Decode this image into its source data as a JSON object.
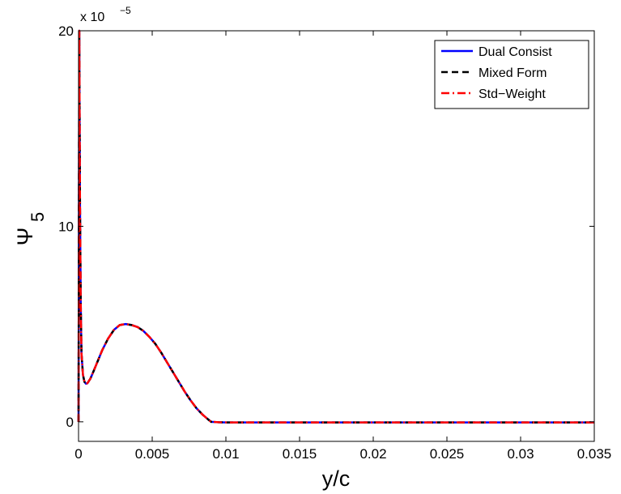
{
  "chart_data": {
    "type": "line",
    "xlabel": "y/c",
    "ylabel": "Ψ",
    "ylabel_subscript": "5",
    "y_scale_base": "x 10",
    "y_scale_exponent": "−5",
    "xlim": [
      0,
      0.035
    ],
    "ylim": [
      -1,
      20
    ],
    "xticks": [
      0,
      0.005,
      0.01,
      0.015,
      0.02,
      0.025,
      0.03,
      0.035
    ],
    "xtick_labels": [
      "0",
      "0.005",
      "0.01",
      "0.015",
      "0.02",
      "0.025",
      "0.03",
      "0.035"
    ],
    "yticks": [
      0,
      10,
      20
    ],
    "ytick_labels": [
      "0",
      "10",
      "20"
    ],
    "grid": false,
    "legend_position": "top-right",
    "x": [
      0,
      5e-05,
      0.0001,
      0.00015,
      0.0002,
      0.0003,
      0.0004,
      0.0005,
      0.0006,
      0.0008,
      0.001,
      0.0013,
      0.0016,
      0.002,
      0.0024,
      0.0028,
      0.0032,
      0.0036,
      0.004,
      0.0044,
      0.0048,
      0.0052,
      0.0056,
      0.006,
      0.0064,
      0.0068,
      0.0072,
      0.0076,
      0.008,
      0.0084,
      0.0088,
      0.009,
      0.0095,
      0.01,
      0.012,
      0.015,
      0.02,
      0.025,
      0.03,
      0.035
    ],
    "series": [
      {
        "name": "Dual Consist",
        "color": "#0000ff",
        "style": "solid",
        "values": [
          0,
          20,
          11,
          6,
          3.5,
          2.4,
          2.05,
          1.95,
          1.97,
          2.2,
          2.55,
          3.1,
          3.65,
          4.25,
          4.7,
          4.95,
          5.0,
          4.95,
          4.85,
          4.65,
          4.35,
          4.0,
          3.55,
          3.05,
          2.55,
          2.05,
          1.55,
          1.1,
          0.7,
          0.38,
          0.12,
          0.0,
          -0.02,
          -0.03,
          -0.03,
          -0.03,
          -0.03,
          -0.03,
          -0.03,
          -0.03
        ]
      },
      {
        "name": "Mixed Form",
        "color": "#000000",
        "style": "dashed",
        "values": [
          0,
          20,
          11,
          6,
          3.5,
          2.4,
          2.05,
          1.95,
          1.97,
          2.2,
          2.55,
          3.1,
          3.65,
          4.25,
          4.7,
          4.95,
          5.0,
          4.95,
          4.85,
          4.65,
          4.35,
          4.0,
          3.55,
          3.05,
          2.55,
          2.05,
          1.55,
          1.1,
          0.7,
          0.38,
          0.12,
          0.0,
          -0.02,
          -0.03,
          -0.03,
          -0.03,
          -0.03,
          -0.03,
          -0.03,
          -0.03
        ]
      },
      {
        "name": "Std−Weight",
        "color": "#ff0000",
        "style": "dashdot",
        "values": [
          0,
          20,
          11,
          6,
          3.5,
          2.4,
          2.05,
          1.95,
          1.97,
          2.2,
          2.55,
          3.1,
          3.65,
          4.25,
          4.7,
          4.95,
          5.0,
          4.95,
          4.85,
          4.65,
          4.35,
          4.0,
          3.55,
          3.05,
          2.55,
          2.05,
          1.55,
          1.1,
          0.7,
          0.38,
          0.12,
          0.0,
          -0.02,
          -0.03,
          -0.03,
          -0.03,
          -0.03,
          -0.03,
          -0.03,
          -0.03
        ]
      }
    ]
  }
}
